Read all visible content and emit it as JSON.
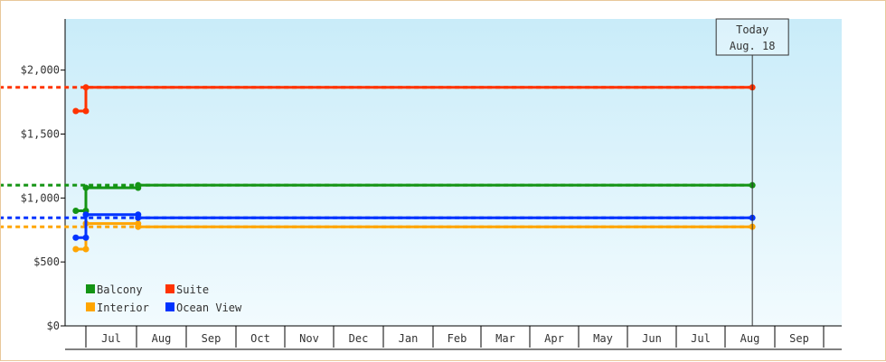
{
  "chart_data": {
    "type": "line",
    "title": "",
    "xlabel": "",
    "ylabel": "",
    "ylim": [
      0,
      2400
    ],
    "y_ticks": [
      {
        "value": 0,
        "label": "$0"
      },
      {
        "value": 500,
        "label": "$500"
      },
      {
        "value": 1000,
        "label": "$1,000"
      },
      {
        "value": 1500,
        "label": "$1,500"
      },
      {
        "value": 2000,
        "label": "$2,000"
      }
    ],
    "x_months": [
      "Jul",
      "Aug",
      "Sep",
      "Oct",
      "Nov",
      "Dec",
      "Jan",
      "Feb",
      "Mar",
      "Apr",
      "May",
      "Jun",
      "Jul",
      "Aug",
      "Sep"
    ],
    "today": {
      "line1": "Today",
      "line2": "Aug. 18",
      "date": "2018-08-18"
    },
    "legend_position": "bottom-left",
    "series": [
      {
        "name": "Balcony",
        "color": "#149414",
        "points": [
          [
            "2017-06-25",
            900
          ],
          [
            "2017-07-01",
            900
          ],
          [
            "2017-07-01",
            1080
          ],
          [
            "2017-08-02",
            1080
          ],
          [
            "2017-08-02",
            1100
          ],
          [
            "2018-08-18",
            1100
          ]
        ],
        "projection_end": "2018-10-01"
      },
      {
        "name": "Suite",
        "color": "#ff3300",
        "points": [
          [
            "2017-06-25",
            1680
          ],
          [
            "2017-07-01",
            1680
          ],
          [
            "2017-07-01",
            1865
          ],
          [
            "2018-08-18",
            1865
          ]
        ],
        "projection_end": "2018-10-01"
      },
      {
        "name": "Interior",
        "color": "#ffa500",
        "points": [
          [
            "2017-06-25",
            600
          ],
          [
            "2017-07-01",
            600
          ],
          [
            "2017-07-01",
            800
          ],
          [
            "2017-08-02",
            800
          ],
          [
            "2017-08-02",
            775
          ],
          [
            "2018-08-18",
            775
          ]
        ],
        "projection_end": "2018-10-01"
      },
      {
        "name": "Ocean View",
        "color": "#0033ff",
        "points": [
          [
            "2017-06-25",
            690
          ],
          [
            "2017-07-01",
            690
          ],
          [
            "2017-07-01",
            870
          ],
          [
            "2017-08-02",
            870
          ],
          [
            "2017-08-02",
            845
          ],
          [
            "2018-08-18",
            845
          ]
        ],
        "projection_end": "2018-10-01"
      }
    ]
  }
}
